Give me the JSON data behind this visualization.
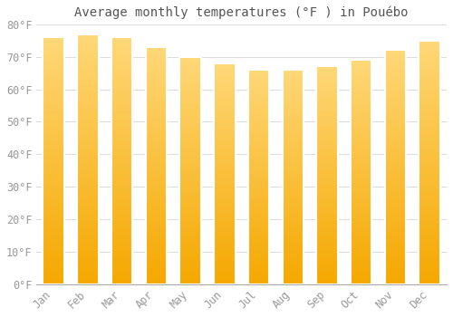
{
  "title": "Average monthly temperatures (°F ) in Pouébo",
  "months": [
    "Jan",
    "Feb",
    "Mar",
    "Apr",
    "May",
    "Jun",
    "Jul",
    "Aug",
    "Sep",
    "Oct",
    "Nov",
    "Dec"
  ],
  "values": [
    76,
    77,
    76,
    73,
    70,
    68,
    66,
    66,
    67,
    69,
    72,
    75
  ],
  "bar_color_bottom": "#F5A800",
  "bar_color_top": "#FFD878",
  "bar_edge_color": "#FFFFFF",
  "background_color": "#FFFFFF",
  "grid_color": "#DDDDDD",
  "ylim": [
    0,
    80
  ],
  "yticks": [
    0,
    10,
    20,
    30,
    40,
    50,
    60,
    70,
    80
  ],
  "ytick_labels": [
    "0°F",
    "10°F",
    "20°F",
    "30°F",
    "40°F",
    "50°F",
    "60°F",
    "70°F",
    "80°F"
  ],
  "title_fontsize": 10,
  "tick_fontsize": 8.5,
  "tick_color": "#999999",
  "title_color": "#555555"
}
